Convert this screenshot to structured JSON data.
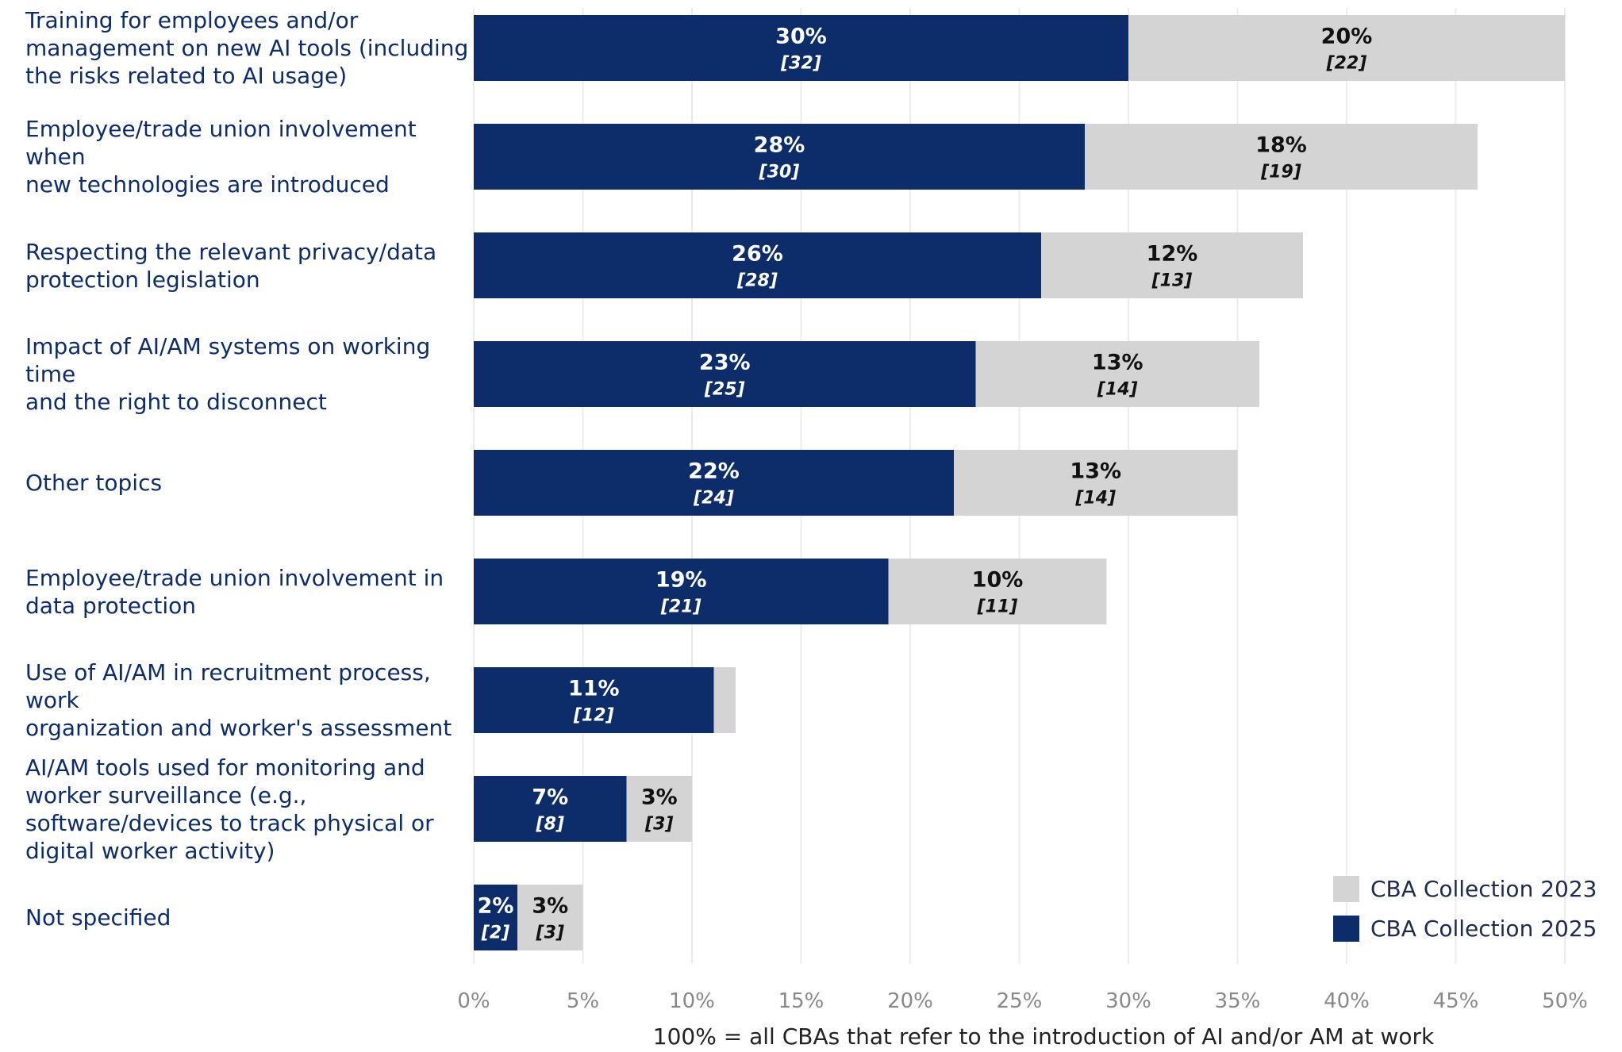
{
  "chart_data": {
    "type": "bar",
    "orientation": "horizontal",
    "stacked": true,
    "categories": [
      "Training for employees and/or management on new AI tools (including the risks related to AI usage)",
      "Employee/trade union involvement when new technologies are introduced",
      "Respecting the relevant privacy/data protection legislation",
      "Impact of AI/AM systems on working time and the right to disconnect",
      "Other topics",
      "Employee/trade union involvement in data protection",
      "Use of AI/AM in recruitment process, work organization and worker's assessment",
      "AI/AM tools used for monitoring and worker surveillance (e.g., software/devices to track physical or digital worker activity)",
      "Not specified"
    ],
    "category_lines": [
      [
        "Training for employees and/or",
        "management on new AI tools (including",
        "the risks related to AI usage)"
      ],
      [
        "Employee/trade union involvement when",
        "new technologies are introduced"
      ],
      [
        "Respecting the relevant privacy/data",
        "protection legislation"
      ],
      [
        "Impact of AI/AM systems on working time",
        "and the right to disconnect"
      ],
      [
        "Other topics"
      ],
      [
        "Employee/trade union involvement in",
        "data protection"
      ],
      [
        "Use of AI/AM in recruitment process, work",
        "organization and worker's assessment"
      ],
      [
        "AI/AM tools used for monitoring and",
        "worker surveillance (e.g.,",
        "software/devices to track physical or",
        "digital worker activity)"
      ],
      [
        "Not specified"
      ]
    ],
    "series": [
      {
        "name": "CBA Collection 2025",
        "color": "#0c2c6a",
        "values": [
          30,
          28,
          26,
          23,
          22,
          19,
          11,
          7,
          2
        ],
        "labels": [
          "30%",
          "28%",
          "26%",
          "23%",
          "22%",
          "19%",
          "11%",
          "7%",
          "2%"
        ],
        "counts": [
          "[32]",
          "[30]",
          "[28]",
          "[25]",
          "[24]",
          "[21]",
          "[12]",
          "[8]",
          "[2]"
        ]
      },
      {
        "name": "CBA Collection 2023",
        "color": "#d4d4d4",
        "values": [
          20,
          18,
          12,
          13,
          13,
          10,
          1,
          3,
          3
        ],
        "labels": [
          "20%",
          "18%",
          "12%",
          "13%",
          "13%",
          "10%",
          "",
          "3%",
          "3%"
        ],
        "counts": [
          "[22]",
          "[19]",
          "[13]",
          "[14]",
          "[14]",
          "[11]",
          "",
          "[3]",
          "[3]"
        ]
      }
    ],
    "xlim": [
      0,
      50
    ],
    "xticks": [
      "0%",
      "5%",
      "10%",
      "15%",
      "20%",
      "25%",
      "30%",
      "35%",
      "40%",
      "45%",
      "50%"
    ],
    "xlabel": "100% = all CBAs that refer to the introduction of AI and/or AM at work",
    "grid": "vertical",
    "legend": {
      "position": "bottom-right",
      "items": [
        {
          "label": "CBA Collection 2023",
          "color": "#d4d4d4"
        },
        {
          "label": "CBA Collection 2025",
          "color": "#0c2c6a"
        }
      ]
    }
  }
}
